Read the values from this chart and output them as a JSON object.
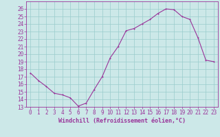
{
  "x": [
    0,
    1,
    2,
    3,
    4,
    5,
    6,
    7,
    8,
    9,
    10,
    11,
    12,
    13,
    14,
    15,
    16,
    17,
    18,
    19,
    20,
    21,
    22,
    23
  ],
  "y": [
    17.5,
    16.5,
    15.7,
    14.8,
    14.6,
    14.2,
    13.1,
    13.5,
    15.3,
    17.0,
    19.5,
    21.0,
    23.1,
    23.4,
    24.0,
    24.6,
    25.4,
    26.0,
    25.9,
    25.0,
    24.6,
    22.2,
    19.2,
    19.0
  ],
  "line_color": "#993399",
  "marker_color": "#993399",
  "bg_color": "#cce8e8",
  "grid_color": "#99cccc",
  "xlabel": "Windchill (Refroidissement éolien,°C)",
  "xlim": [
    -0.5,
    23.5
  ],
  "ylim": [
    13,
    27
  ],
  "yticks": [
    13,
    14,
    15,
    16,
    17,
    18,
    19,
    20,
    21,
    22,
    23,
    24,
    25,
    26
  ],
  "xticks": [
    0,
    1,
    2,
    3,
    4,
    5,
    6,
    7,
    8,
    9,
    10,
    11,
    12,
    13,
    14,
    15,
    16,
    17,
    18,
    19,
    20,
    21,
    22,
    23
  ],
  "tick_color": "#993399",
  "label_color": "#993399",
  "axis_color": "#993399",
  "font_size": 5.5,
  "xlabel_fontsize": 6.0,
  "line_width": 0.8,
  "marker_size": 2.0
}
